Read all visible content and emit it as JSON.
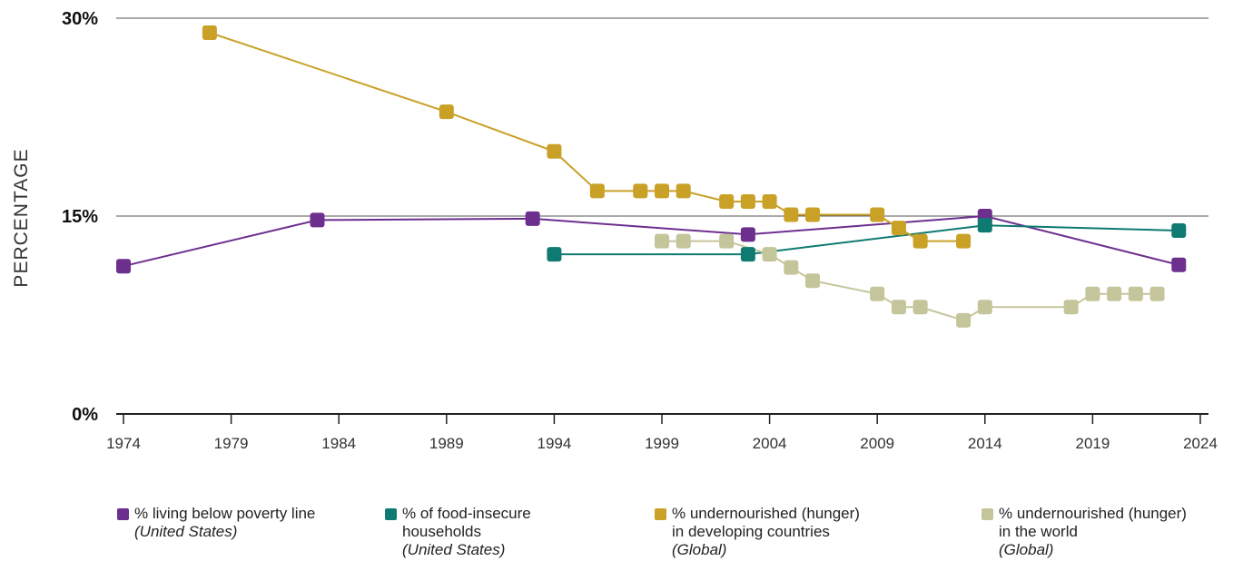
{
  "chart_data": {
    "type": "line",
    "ylabel": "PERCENTAGE",
    "xlabel": "",
    "ylim": [
      0,
      30
    ],
    "xlim": [
      1974,
      2024
    ],
    "y_ticks": [
      "0%",
      "15%",
      "30%"
    ],
    "x_ticks": [
      "1974",
      "1979",
      "1984",
      "1989",
      "1994",
      "1999",
      "2004",
      "2009",
      "2014",
      "2019",
      "2024"
    ],
    "grid": "horizontal",
    "legend_position": "bottom",
    "series": [
      {
        "name": "% living below poverty line",
        "region": "(United States)",
        "color": "#6d2f8e",
        "x": [
          1974,
          1983,
          1993,
          2003,
          2014,
          2023
        ],
        "y": [
          11.2,
          14.7,
          14.8,
          13.6,
          15.0,
          11.3
        ]
      },
      {
        "name": "% of food-insecure households",
        "region": "(United States)",
        "color": "#0e7a72",
        "x": [
          1994,
          2003,
          2014,
          2023
        ],
        "y": [
          12.1,
          12.1,
          14.3,
          13.9
        ]
      },
      {
        "name": "% undernourished (hunger) in developing countries",
        "region": "(Global)",
        "color": "#c9a127",
        "x": [
          1978,
          1989,
          1994,
          1996,
          1998,
          1999,
          2000,
          2002,
          2003,
          2004,
          2005,
          2006,
          2009,
          2010,
          2011,
          2013
        ],
        "y": [
          28.9,
          22.9,
          19.9,
          16.9,
          16.9,
          16.9,
          16.9,
          16.1,
          16.1,
          16.1,
          15.1,
          15.1,
          15.1,
          14.1,
          13.1,
          13.1
        ]
      },
      {
        "name": "% undernourished (hunger) in the world",
        "region": "(Global)",
        "color": "#c5c59b",
        "x": [
          1999,
          2000,
          2002,
          2004,
          2005,
          2006,
          2009,
          2010,
          2011,
          2013,
          2014,
          2018,
          2019,
          2020,
          2021,
          2022
        ],
        "y": [
          13.1,
          13.1,
          13.1,
          12.1,
          11.1,
          10.1,
          9.1,
          8.1,
          8.1,
          7.1,
          8.1,
          8.1,
          9.1,
          9.1,
          9.1,
          9.1
        ]
      }
    ]
  }
}
